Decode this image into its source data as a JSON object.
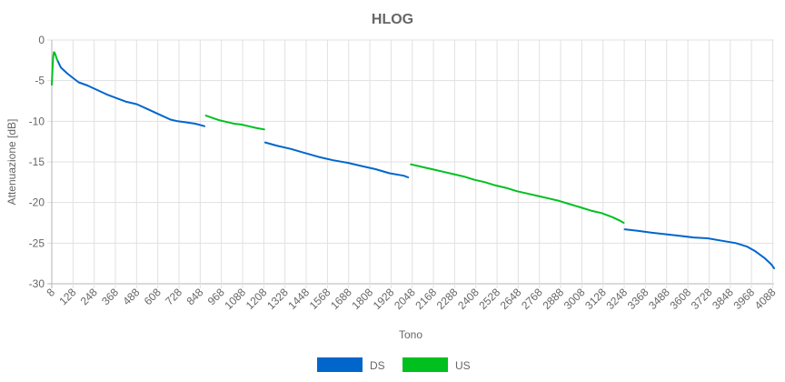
{
  "chart_data": {
    "type": "line",
    "title": "HLOG",
    "xlabel": "Tono",
    "ylabel": "Attenuazione [dB]",
    "ylim": [
      -30,
      0
    ],
    "xlim": [
      8,
      4096
    ],
    "yticks": [
      0,
      -5,
      -10,
      -15,
      -20,
      -25,
      -30
    ],
    "xticks": [
      8,
      128,
      248,
      368,
      488,
      608,
      728,
      848,
      968,
      1088,
      1208,
      1328,
      1448,
      1568,
      1688,
      1808,
      1928,
      2048,
      2168,
      2288,
      2408,
      2528,
      2648,
      2768,
      2888,
      3008,
      3128,
      3248,
      3368,
      3488,
      3608,
      3728,
      3848,
      3968,
      4088
    ],
    "grid": true,
    "legend_position": "bottom",
    "series": [
      {
        "name": "DS",
        "color": "#0066cc",
        "segments": [
          [
            [
              40,
              -2.5
            ],
            [
              60,
              -3.4
            ],
            [
              100,
              -4.2
            ],
            [
              130,
              -4.7
            ],
            [
              160,
              -5.2
            ],
            [
              210,
              -5.6
            ],
            [
              260,
              -6.1
            ],
            [
              320,
              -6.7
            ],
            [
              380,
              -7.2
            ],
            [
              430,
              -7.6
            ],
            [
              490,
              -7.9
            ],
            [
              560,
              -8.6
            ],
            [
              620,
              -9.2
            ],
            [
              680,
              -9.8
            ],
            [
              720,
              -10.0
            ],
            [
              760,
              -10.1
            ],
            [
              820,
              -10.3
            ],
            [
              872,
              -10.6
            ]
          ],
          [
            [
              1216,
              -12.6
            ],
            [
              1280,
              -13.0
            ],
            [
              1360,
              -13.4
            ],
            [
              1440,
              -13.9
            ],
            [
              1520,
              -14.4
            ],
            [
              1600,
              -14.8
            ],
            [
              1680,
              -15.1
            ],
            [
              1760,
              -15.5
            ],
            [
              1840,
              -15.9
            ],
            [
              1920,
              -16.4
            ],
            [
              2000,
              -16.7
            ],
            [
              2025,
              -16.9
            ]
          ],
          [
            [
              3250,
              -23.3
            ],
            [
              3330,
              -23.5
            ],
            [
              3400,
              -23.7
            ],
            [
              3480,
              -23.9
            ],
            [
              3560,
              -24.1
            ],
            [
              3640,
              -24.3
            ],
            [
              3720,
              -24.4
            ],
            [
              3800,
              -24.7
            ],
            [
              3880,
              -25.0
            ],
            [
              3940,
              -25.4
            ],
            [
              3990,
              -26.0
            ],
            [
              4040,
              -26.8
            ],
            [
              4080,
              -27.6
            ],
            [
              4096,
              -28.1
            ]
          ]
        ]
      },
      {
        "name": "US",
        "color": "#00c020",
        "segments": [
          [
            [
              8,
              -5.5
            ],
            [
              12,
              -3.5
            ],
            [
              16,
              -2.0
            ],
            [
              20,
              -1.5
            ],
            [
              25,
              -1.6
            ],
            [
              30,
              -1.9
            ],
            [
              35,
              -2.3
            ],
            [
              40,
              -2.5
            ]
          ],
          [
            [
              880,
              -9.3
            ],
            [
              920,
              -9.6
            ],
            [
              960,
              -9.9
            ],
            [
              1000,
              -10.1
            ],
            [
              1040,
              -10.3
            ],
            [
              1080,
              -10.4
            ],
            [
              1120,
              -10.6
            ],
            [
              1160,
              -10.8
            ],
            [
              1210,
              -11.0
            ]
          ],
          [
            [
              2040,
              -15.3
            ],
            [
              2100,
              -15.6
            ],
            [
              2160,
              -15.9
            ],
            [
              2220,
              -16.2
            ],
            [
              2280,
              -16.5
            ],
            [
              2340,
              -16.8
            ],
            [
              2400,
              -17.2
            ],
            [
              2460,
              -17.5
            ],
            [
              2520,
              -17.9
            ],
            [
              2580,
              -18.2
            ],
            [
              2640,
              -18.6
            ],
            [
              2700,
              -18.9
            ],
            [
              2760,
              -19.2
            ],
            [
              2820,
              -19.5
            ],
            [
              2880,
              -19.8
            ],
            [
              2940,
              -20.2
            ],
            [
              3000,
              -20.6
            ],
            [
              3060,
              -21.0
            ],
            [
              3120,
              -21.3
            ],
            [
              3180,
              -21.8
            ],
            [
              3220,
              -22.2
            ],
            [
              3245,
              -22.5
            ]
          ]
        ]
      }
    ]
  }
}
